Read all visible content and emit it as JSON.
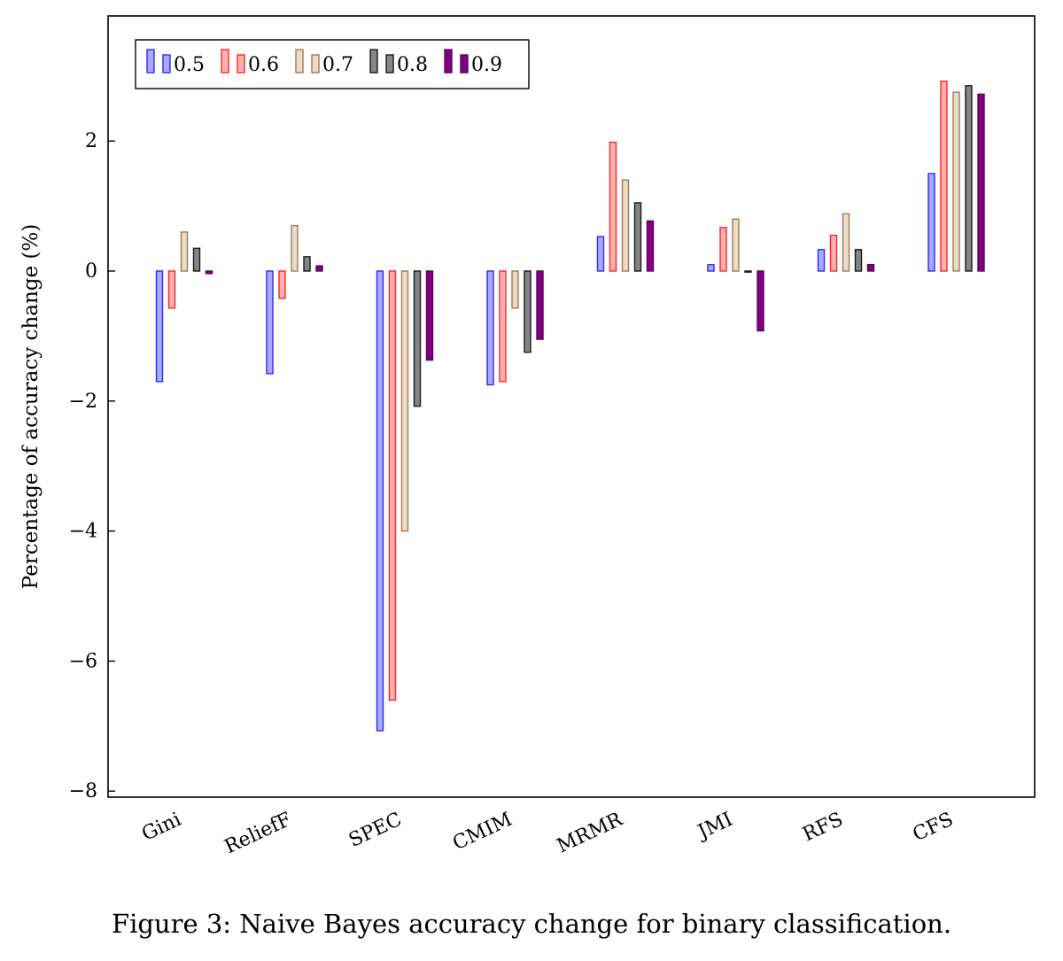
{
  "caption": "Figure 3: Naive Bayes accuracy change for binary classification.",
  "chart_data": {
    "type": "bar",
    "title": "",
    "xlabel": "",
    "ylabel": "Percentage of accuracy change (%)",
    "ylim": [
      -8,
      3.9
    ],
    "yticks": [
      2,
      0,
      -2,
      -4,
      -6,
      -8
    ],
    "ytick_labels": [
      "2",
      "0",
      "−2",
      "−4",
      "−6",
      "−8"
    ],
    "grid": false,
    "legend_position": "top-left",
    "categories": [
      "Gini",
      "ReliefF",
      "SPEC",
      "CMIM",
      "MRMR",
      "JMI",
      "RFS",
      "CFS"
    ],
    "series": [
      {
        "name": "0.5",
        "stroke": "#2b2bff",
        "fill": "#a9a9ff",
        "values": [
          -1.7,
          -1.58,
          -7.07,
          -1.75,
          0.53,
          0.1,
          0.33,
          1.5
        ]
      },
      {
        "name": "0.6",
        "stroke": "#ff2424",
        "fill": "#ffb3b3",
        "values": [
          -0.57,
          -0.42,
          -6.6,
          -1.7,
          1.98,
          0.67,
          0.55,
          2.92
        ]
      },
      {
        "name": "0.7",
        "stroke": "#9c7a5a",
        "fill": "#ecdcc7",
        "values": [
          0.6,
          0.7,
          -4.0,
          -0.57,
          1.4,
          0.8,
          0.88,
          2.75
        ]
      },
      {
        "name": "0.8",
        "stroke": "#1a1a1a",
        "fill": "#858585",
        "values": [
          0.35,
          0.22,
          -2.08,
          -1.25,
          1.05,
          0.0,
          0.33,
          2.85
        ]
      },
      {
        "name": "0.9",
        "stroke": "#5e005e",
        "fill": "#800080",
        "values": [
          -0.04,
          0.08,
          -1.37,
          -1.05,
          0.77,
          -0.92,
          0.1,
          2.72
        ]
      }
    ]
  }
}
